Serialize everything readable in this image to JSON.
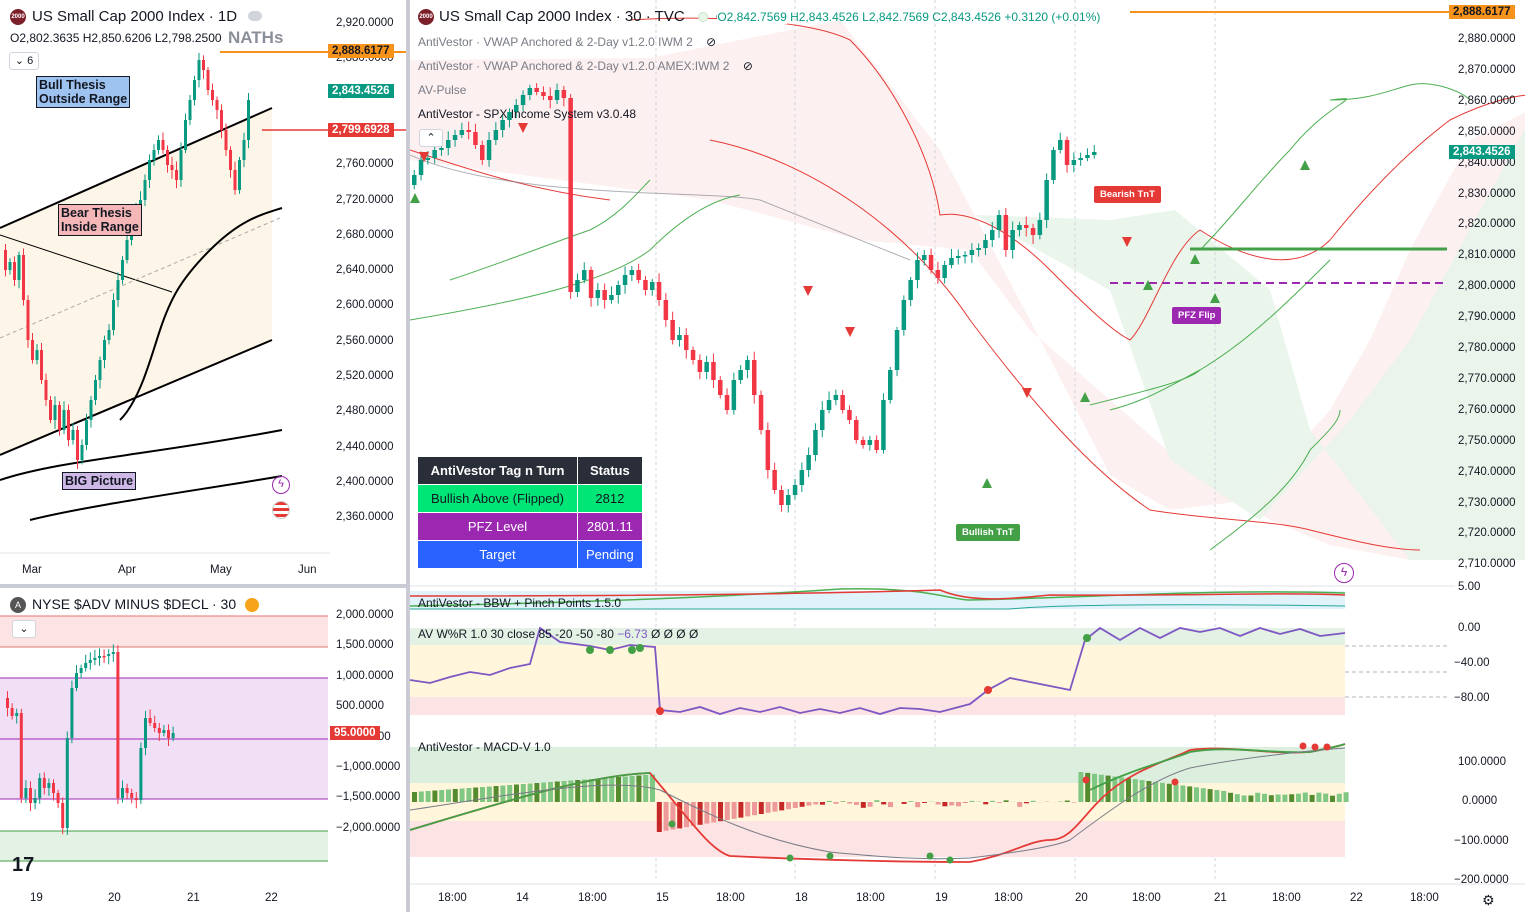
{
  "left_top": {
    "title": "US Small Cap 2000 Index · 1D",
    "ohlc": {
      "o": "O2,802.3635",
      "h": "H2,850.6206",
      "l": "L2,798.2500"
    },
    "counter": "6",
    "naths": "NATHs",
    "notes": {
      "bull": [
        "Bull Thesis",
        "Outside Range"
      ],
      "bear": [
        "Bear Thesis",
        "Inside Range"
      ],
      "big": "BIG Picture"
    },
    "price_axis": [
      "2,920.0000",
      "2,880.0000",
      "2,840.0000",
      "2,800.0000",
      "2,760.0000",
      "2,720.0000",
      "2,680.0000",
      "2,640.0000",
      "2,600.0000",
      "2,560.0000",
      "2,520.0000",
      "2,480.0000",
      "2,440.0000",
      "2,400.0000",
      "2,360.0000"
    ],
    "tags": {
      "orange": "2,888.6177",
      "green": "2,843.4526",
      "red": "2,799.6928"
    },
    "time_axis": [
      "Mar",
      "Apr",
      "May",
      "Jun"
    ]
  },
  "left_bottom": {
    "title": "NYSE $ADV MINUS $DECL · 30",
    "axis": [
      "2,000.0000",
      "1,500.0000",
      "1,000.0000",
      "500.0000",
      "−500.0000",
      "−1,000.0000",
      "−1,500.0000",
      "−2,000.0000"
    ],
    "tag": "95.0000",
    "time_axis": [
      "19",
      "20",
      "21",
      "22"
    ]
  },
  "main": {
    "title": "US Small Cap 2000 Index · 30 · TVC",
    "ohlc": {
      "o": "O2,842.7569",
      "h": "H2,843.4526",
      "l": "L2,842.7569",
      "c": "C2,843.4526",
      "chg": "+0.3120 (+0.01%)"
    },
    "indicators": [
      "AntiVestor · VWAP Anchored & 2-Day v1.2.0 IWM 2",
      "AntiVestor · VWAP Anchored & 2-Day v1.2.0 AMEX:IWM 2",
      "AV-Pulse",
      "AntiVestor - SPX Income System v3.0.48"
    ],
    "price_axis": [
      "2,880.0000",
      "2,870.0000",
      "2,860.0000",
      "2,850.0000",
      "2,840.0000",
      "2,830.0000",
      "2,820.0000",
      "2,810.0000",
      "2,800.0000",
      "2,790.0000",
      "2,780.0000",
      "2,770.0000",
      "2,760.0000",
      "2,750.0000",
      "2,740.0000",
      "2,730.0000",
      "2,720.0000",
      "2,710.0000"
    ],
    "tags": {
      "orange": "2,888.6177",
      "green": "2,843.4526"
    },
    "badges": {
      "bearish": "Bearish TnT",
      "bullish": "Bullish TnT",
      "pfz": "PFZ Flip"
    },
    "table": {
      "headers": [
        "AntiVestor Tag n Turn",
        "Status"
      ],
      "rows": [
        [
          "Bullish Above (Flipped)",
          "2812"
        ],
        [
          "PFZ Level",
          "2801.11"
        ],
        [
          "Target",
          "Pending"
        ]
      ]
    },
    "bbw": {
      "title": "AntiVestor - BBW + Pinch Points 1.5.0",
      "axis": "5.00"
    },
    "wr": {
      "title": "AV W%R 1.0 30 close 85 -20 -50 -80",
      "value": "−6.73",
      "nums": "Ø Ø Ø Ø",
      "axis": [
        "0.00",
        "−40.00",
        "−80.00"
      ]
    },
    "macd": {
      "title": "AntiVestor - MACD-V 1.0",
      "axis": [
        "100.0000",
        "0.0000",
        "−100.0000",
        "−200.0000"
      ]
    },
    "time_axis": [
      "18:00",
      "14",
      "18:00",
      "15",
      "18:00",
      "18",
      "18:00",
      "19",
      "18:00",
      "20",
      "18:00",
      "21",
      "18:00",
      "22",
      "18:00"
    ]
  }
}
